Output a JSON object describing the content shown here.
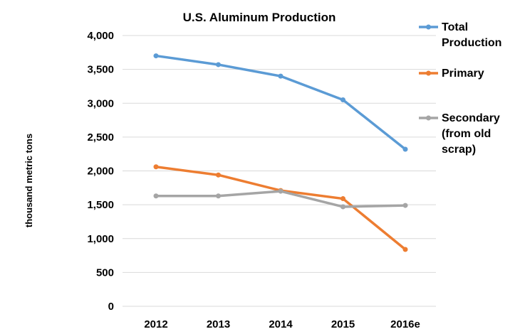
{
  "chart_data": {
    "type": "line",
    "title": "U.S. Aluminum Production",
    "xlabel": "",
    "ylabel": "thousand metric tons",
    "categories": [
      "2012",
      "2013",
      "2014",
      "2015",
      "2016e"
    ],
    "ylim": [
      0,
      4000
    ],
    "yticks": [
      0,
      500,
      1000,
      1500,
      2000,
      2500,
      3000,
      3500,
      4000
    ],
    "ytick_labels": [
      "0",
      "500",
      "1,000",
      "1,500",
      "2,000",
      "2,500",
      "3,000",
      "3,500",
      "4,000"
    ],
    "grid": true,
    "legend_position": "right",
    "series": [
      {
        "name": "Total Production",
        "legend_lines": [
          "Total",
          "Production"
        ],
        "color": "#5b9bd5",
        "values": [
          3700,
          3570,
          3400,
          3050,
          2320
        ]
      },
      {
        "name": "Primary",
        "legend_lines": [
          "Primary"
        ],
        "color": "#ed7d31",
        "values": [
          2060,
          1940,
          1710,
          1590,
          840
        ]
      },
      {
        "name": "Secondary (from old scrap)",
        "legend_lines": [
          "Secondary",
          "(from old",
          "scrap)"
        ],
        "color": "#a5a5a5",
        "values": [
          1630,
          1630,
          1700,
          1470,
          1490
        ]
      }
    ]
  }
}
